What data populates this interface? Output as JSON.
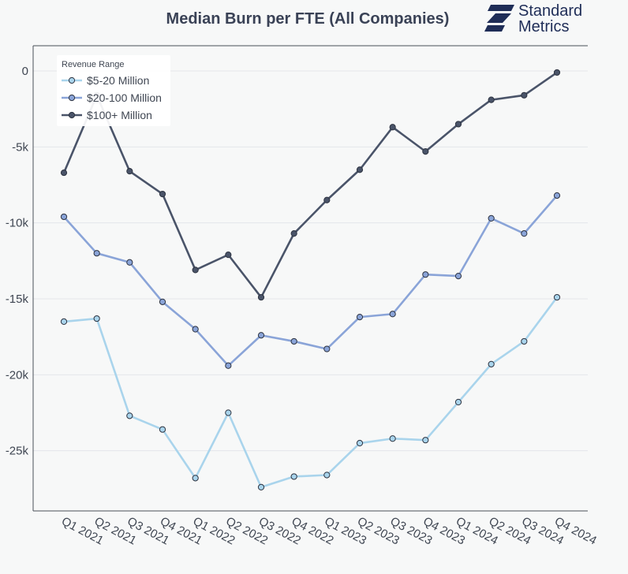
{
  "header": {
    "title": "Median Burn per FTE (All Companies)",
    "logo_line1": "Standard",
    "logo_line2": "Metrics"
  },
  "legend": {
    "title": "Revenue Range",
    "placement": "top-left"
  },
  "chart_data": {
    "type": "line",
    "title": "Median Burn per FTE (All Companies)",
    "xlabel": "",
    "ylabel": "",
    "categories": [
      "Q1 2021",
      "Q2 2021",
      "Q3 2021",
      "Q4 2021",
      "Q1 2022",
      "Q2 2022",
      "Q3 2022",
      "Q4 2022",
      "Q1 2023",
      "Q2 2023",
      "Q3 2023",
      "Q4 2023",
      "Q1 2024",
      "Q2 2024",
      "Q3 2024",
      "Q4 2024"
    ],
    "ylim": [
      -29000,
      1500
    ],
    "yticks": [
      0,
      -5000,
      -10000,
      -15000,
      -20000,
      -25000
    ],
    "ytick_labels": [
      "0",
      "-5k",
      "-10k",
      "-15k",
      "-20k",
      "-25k"
    ],
    "grid": true,
    "series": [
      {
        "name": "$5-20 Million",
        "color": "#a9d4ec",
        "values": [
          -16500,
          -16300,
          -22700,
          -23600,
          -26800,
          -22500,
          -27400,
          -26700,
          -26600,
          -24500,
          -24200,
          -24300,
          -21800,
          -19300,
          -17800,
          -14900
        ]
      },
      {
        "name": "$20-100 Million",
        "color": "#8aa4d8",
        "values": [
          -9600,
          -12000,
          -12600,
          -15200,
          -17000,
          -19400,
          -17400,
          -17800,
          -18300,
          -16200,
          -16000,
          -13400,
          -13500,
          -9700,
          -10700,
          -8200
        ]
      },
      {
        "name": "$100+ Million",
        "color": "#4a5469",
        "values": [
          -6700,
          -1600,
          -6600,
          -8100,
          -13100,
          -12100,
          -14900,
          -10700,
          -8500,
          -6500,
          -3700,
          -5300,
          -3500,
          -1900,
          -1600,
          -100
        ]
      }
    ]
  }
}
